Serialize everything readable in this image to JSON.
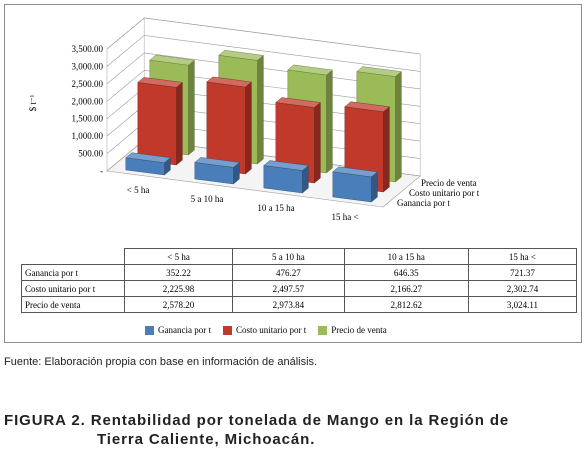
{
  "chart_data": {
    "type": "bar",
    "subtype": "3d-column",
    "ylabel": "$ t⁻¹",
    "ylim": [
      0,
      3500
    ],
    "yticks": [
      "3,500.00",
      "3,000.00",
      "2,500.00",
      "2,000.00",
      "1,500.00",
      "1,000.00",
      "500.00",
      "-"
    ],
    "ytick_values": [
      3500,
      3000,
      2500,
      2000,
      1500,
      1000,
      500,
      0
    ],
    "grid": true,
    "legend_position": "bottom",
    "categories": [
      "< 5 ha",
      "5 a 10 ha",
      "10 a 15 ha",
      "15  ha <"
    ],
    "series": [
      {
        "name": "Ganancia por t",
        "values": [
          352.22,
          476.27,
          646.35,
          721.37
        ],
        "labels": [
          "352.22",
          "476.27",
          "646.35",
          "721.37"
        ],
        "color": "#4a7ebb"
      },
      {
        "name": "Costo unitario por t",
        "values": [
          2225.98,
          2497.57,
          2166.27,
          2302.74
        ],
        "labels": [
          "2,225.98",
          "2,497.57",
          "2,166.27",
          "2,302.74"
        ],
        "color": "#c0392b"
      },
      {
        "name": "Precio de venta",
        "values": [
          2578.2,
          2973.84,
          2812.62,
          3024.11
        ],
        "labels": [
          "2,578.20",
          "2,973.84",
          "2,812.62",
          "3,024.11"
        ],
        "color": "#9bbb59"
      }
    ]
  },
  "source_note": "Fuente: Elaboración propia con base en información de análisis.",
  "caption": {
    "line1": "FIGURA 2. Rentabilidad por tonelada de Mango en la Región de",
    "line2": "Tierra Caliente, Michoacán."
  }
}
